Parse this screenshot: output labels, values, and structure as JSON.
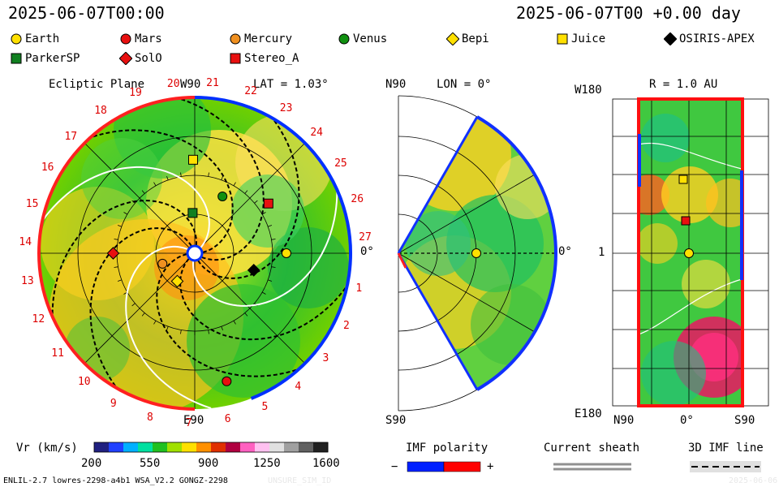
{
  "header": {
    "datetime_left": "2025-06-07T00:00",
    "datetime_right": "2025-06-07T00 +0.00 day"
  },
  "legend": [
    {
      "name": "Earth",
      "shape": "circle",
      "color": "#ffe000"
    },
    {
      "name": "Mars",
      "shape": "circle",
      "color": "#e81010"
    },
    {
      "name": "Mercury",
      "shape": "circle",
      "color": "#f09020"
    },
    {
      "name": "Venus",
      "shape": "circle",
      "color": "#109010"
    },
    {
      "name": "Bepi",
      "shape": "diamond",
      "color": "#ffe000"
    },
    {
      "name": "Juice",
      "shape": "square",
      "color": "#ffe000"
    },
    {
      "name": "OSIRIS-APEX",
      "shape": "diamond",
      "color": "#000000"
    },
    {
      "name": "ParkerSP",
      "shape": "square",
      "color": "#108020"
    },
    {
      "name": "SolO",
      "shape": "diamond",
      "color": "#e81010"
    },
    {
      "name": "Stereo_A",
      "shape": "square",
      "color": "#e81010"
    }
  ],
  "panel_ecliptic": {
    "title": "Ecliptic Plane",
    "lat_label": "LAT = 1.03°",
    "top_label": "W90",
    "bottom_label": "E90",
    "right_label": "0°",
    "carrington_labels": [
      "1",
      "2",
      "3",
      "4",
      "5",
      "6",
      "7",
      "8",
      "9",
      "10",
      "11",
      "12",
      "13",
      "14",
      "15",
      "16",
      "17",
      "18",
      "19",
      "20",
      "21",
      "22",
      "23",
      "24",
      "25",
      "26",
      "27"
    ]
  },
  "panel_meridional": {
    "lon_label": "LON = 0°",
    "top_label": "N90",
    "bottom_label": "S90",
    "right_label": "0°"
  },
  "panel_sphere": {
    "r_label": "R = 1.0 AU",
    "top_left": "W180",
    "mid_left": "1",
    "bottom_left": "E180",
    "x_labels": [
      "N90",
      "0°",
      "S90"
    ]
  },
  "colorbar": {
    "label": "Vr (km/s)",
    "ticks": [
      "200",
      "550",
      "900",
      "1250",
      "1600"
    ],
    "colors": [
      "#202080",
      "#2040ff",
      "#00b0ff",
      "#00e0a0",
      "#20c020",
      "#a0e000",
      "#ffe000",
      "#ff9000",
      "#e03000",
      "#b00040",
      "#ff60c0",
      "#ffc0f0",
      "#e0e0e0",
      "#a0a0a0",
      "#606060",
      "#202020"
    ]
  },
  "imf_polarity": {
    "label": "IMF polarity",
    "minus": "−",
    "plus": "+",
    "neg_color": "#0020ff",
    "pos_color": "#ff0000"
  },
  "current_sheath": {
    "label": "Current sheath"
  },
  "imf_line": {
    "label": "3D IMF line"
  },
  "footer": {
    "model": "ENLIL-2.7 lowres-2298-a4b1 WSA_V2.2 GONGZ-2298",
    "run": "UNSURE_SIM_ID",
    "date": "2025-06-06"
  },
  "chart_data": [
    {
      "type": "heatmap",
      "title": "Ecliptic Plane",
      "quantity": "Vr (km/s)",
      "vrange": [
        200,
        1600
      ],
      "bodies": [
        {
          "name": "Earth",
          "lon_deg": 0,
          "r_au": 1.0
        },
        {
          "name": "Mars",
          "lon_deg": -76,
          "r_au": 1.44
        },
        {
          "name": "Mercury",
          "lon_deg": -162,
          "r_au": 0.37
        },
        {
          "name": "Venus",
          "lon_deg": 64,
          "r_au": 0.69
        },
        {
          "name": "Bepi",
          "lon_deg": -122,
          "r_au": 0.36
        },
        {
          "name": "Juice",
          "lon_deg": 91,
          "r_au": 1.02
        },
        {
          "name": "OSIRIS-APEX",
          "lon_deg": -16,
          "r_au": 0.67
        },
        {
          "name": "ParkerSP",
          "lon_deg": 93,
          "r_au": 0.44
        },
        {
          "name": "SolO",
          "lon_deg": 180,
          "r_au": 0.89
        },
        {
          "name": "Stereo_A",
          "lon_deg": 34,
          "r_au": 0.97
        }
      ]
    },
    {
      "type": "heatmap",
      "title": "Meridional plane",
      "quantity": "Vr (km/s)",
      "bodies": [
        {
          "name": "Earth",
          "lat_deg": 0,
          "r_au": 1.0
        }
      ]
    },
    {
      "type": "heatmap",
      "title": "R = 1.0 AU",
      "quantity": "Vr (km/s)",
      "bodies": [
        {
          "name": "Juice",
          "lat_deg": 3,
          "lon_deg": 91
        },
        {
          "name": "Stereo_A",
          "lat_deg": 3,
          "lon_deg": 34
        },
        {
          "name": "Earth",
          "lat_deg": 0,
          "lon_deg": 0
        }
      ]
    }
  ]
}
